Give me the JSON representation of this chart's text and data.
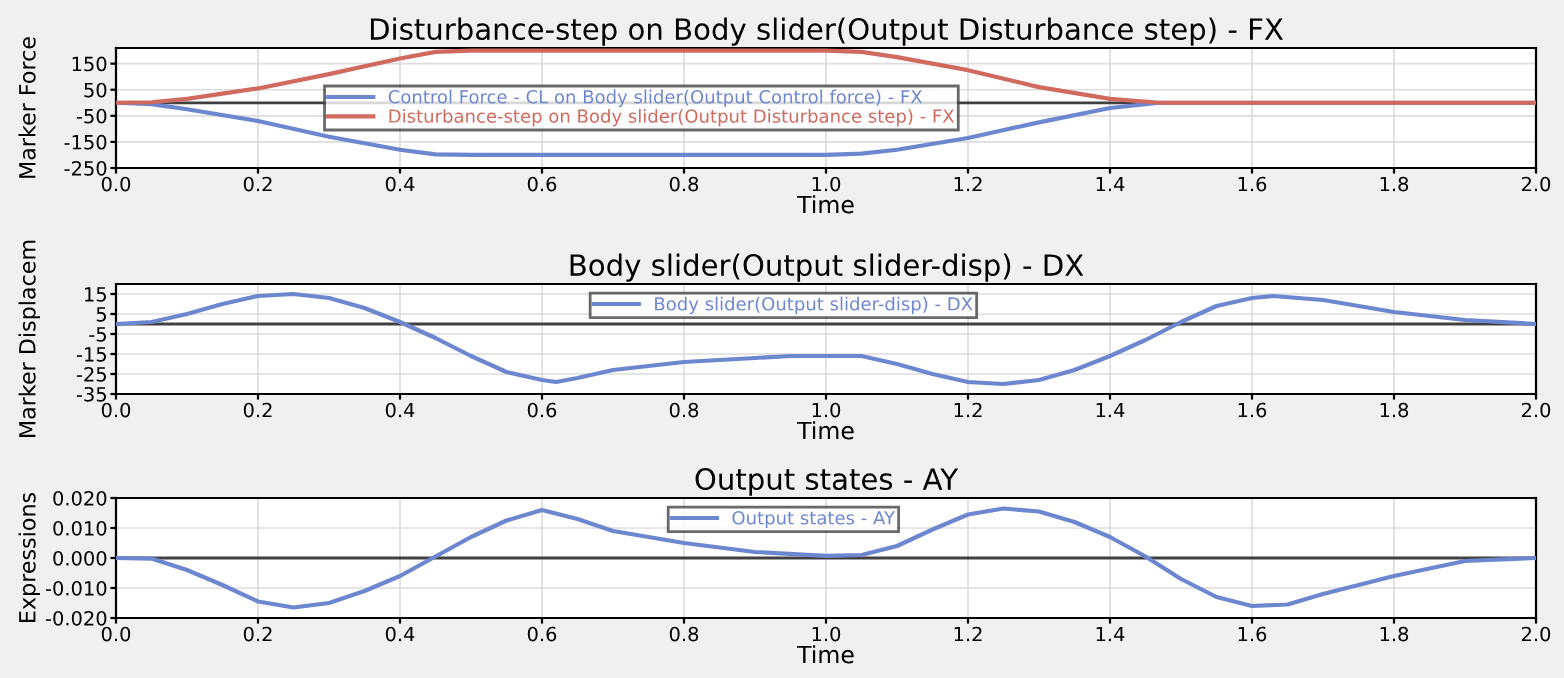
{
  "chart_data": [
    {
      "type": "line",
      "title": "Disturbance-step on Body slider(Output Disturbance step) - FX",
      "xlabel": "Time",
      "ylabel": "Marker Force",
      "xlim": [
        0,
        2
      ],
      "xticks": [
        {
          "value": 0,
          "label": "0.0"
        },
        {
          "value": 0.2,
          "label": "0.2"
        },
        {
          "value": 0.4,
          "label": "0.4"
        },
        {
          "value": 0.6,
          "label": "0.6"
        },
        {
          "value": 0.8,
          "label": "0.8"
        },
        {
          "value": 1,
          "label": "1.0"
        },
        {
          "value": 1.2,
          "label": "1.2"
        },
        {
          "value": 1.4,
          "label": "1.4"
        },
        {
          "value": 1.6,
          "label": "1.6"
        },
        {
          "value": 1.8,
          "label": "1.8"
        },
        {
          "value": 2,
          "label": "2.0"
        }
      ],
      "ylim": [
        -250,
        210
      ],
      "yticks": [
        -250,
        -150,
        -50,
        50,
        150
      ],
      "grid": true,
      "legend": "center",
      "ref_lines": [
        {
          "axis": "y",
          "value": 0,
          "color": "#404040"
        }
      ],
      "series": [
        {
          "name": "Control Force - CL on Body slider(Output Control force) - FX",
          "color": "#6d86d0",
          "x": [
            0,
            0.05,
            0.1,
            0.2,
            0.3,
            0.4,
            0.45,
            0.5,
            1.0,
            1.05,
            1.1,
            1.2,
            1.3,
            1.4,
            1.47,
            2.0
          ],
          "values": [
            0,
            -5,
            -25,
            -70,
            -130,
            -180,
            -198,
            -200,
            -200,
            -195,
            -180,
            -135,
            -75,
            -20,
            0,
            0
          ]
        },
        {
          "name": "Disturbance-step on Body slider(Output Disturbance step) - FX",
          "color": "#d06a5e",
          "x": [
            0,
            0.05,
            0.1,
            0.2,
            0.3,
            0.4,
            0.45,
            0.5,
            1.0,
            1.05,
            1.1,
            1.2,
            1.3,
            1.4,
            1.47,
            2.0
          ],
          "values": [
            0,
            2,
            15,
            55,
            110,
            170,
            195,
            200,
            200,
            195,
            175,
            125,
            60,
            15,
            0,
            0
          ]
        }
      ]
    },
    {
      "type": "line",
      "title": "Body slider(Output slider-disp) - DX",
      "xlabel": "Time",
      "ylabel": "Marker Displacem",
      "xlim": [
        0,
        2
      ],
      "xticks": [
        {
          "value": 0,
          "label": "0.0"
        },
        {
          "value": 0.2,
          "label": "0.2"
        },
        {
          "value": 0.4,
          "label": "0.4"
        },
        {
          "value": 0.6,
          "label": "0.6"
        },
        {
          "value": 0.8,
          "label": "0.8"
        },
        {
          "value": 1,
          "label": "1.0"
        },
        {
          "value": 1.2,
          "label": "1.2"
        },
        {
          "value": 1.4,
          "label": "1.4"
        },
        {
          "value": 1.6,
          "label": "1.6"
        },
        {
          "value": 1.8,
          "label": "1.8"
        },
        {
          "value": 2,
          "label": "2.0"
        }
      ],
      "ylim": [
        -35,
        20
      ],
      "yticks": [
        -35,
        -25,
        -15,
        -5,
        5,
        15
      ],
      "grid": true,
      "legend": "top",
      "ref_lines": [
        {
          "axis": "y",
          "value": 0,
          "color": "#404040"
        }
      ],
      "series": [
        {
          "name": "Body slider(Output slider-disp) - DX",
          "color": "#6d86d0",
          "x": [
            0,
            0.05,
            0.1,
            0.15,
            0.2,
            0.25,
            0.3,
            0.35,
            0.4,
            0.45,
            0.5,
            0.55,
            0.6,
            0.62,
            0.65,
            0.7,
            0.8,
            0.9,
            0.95,
            1.05,
            1.1,
            1.15,
            1.2,
            1.25,
            1.3,
            1.35,
            1.4,
            1.45,
            1.5,
            1.55,
            1.6,
            1.63,
            1.7,
            1.8,
            1.9,
            2.0
          ],
          "values": [
            0,
            1,
            5,
            10,
            14,
            15,
            13,
            8,
            1,
            -7,
            -16,
            -24,
            -28,
            -29,
            -27,
            -23,
            -19,
            -17,
            -16,
            -16,
            -20,
            -25,
            -29,
            -30,
            -28,
            -23,
            -16,
            -8,
            1,
            9,
            13,
            14,
            12,
            6,
            2,
            0
          ]
        }
      ]
    },
    {
      "type": "line",
      "title": "Output states - AY",
      "xlabel": "Time",
      "ylabel": "Expressions",
      "xlim": [
        0,
        2
      ],
      "xticks": [
        {
          "value": 0,
          "label": "0.0"
        },
        {
          "value": 0.2,
          "label": "0.2"
        },
        {
          "value": 0.4,
          "label": "0.4"
        },
        {
          "value": 0.6,
          "label": "0.6"
        },
        {
          "value": 0.8,
          "label": "0.8"
        },
        {
          "value": 1,
          "label": "1.0"
        },
        {
          "value": 1.2,
          "label": "1.2"
        },
        {
          "value": 1.4,
          "label": "1.4"
        },
        {
          "value": 1.6,
          "label": "1.6"
        },
        {
          "value": 1.8,
          "label": "1.8"
        },
        {
          "value": 2,
          "label": "2.0"
        }
      ],
      "ylim": [
        -0.02,
        0.02
      ],
      "yticks": [
        {
          "value": -0.02,
          "label": "-0.020"
        },
        {
          "value": -0.01,
          "label": "-0.010"
        },
        {
          "value": 0,
          "label": "0.000"
        },
        {
          "value": 0.01,
          "label": "0.010"
        },
        {
          "value": 0.02,
          "label": "0.020"
        }
      ],
      "grid": true,
      "legend": "top",
      "ref_lines": [
        {
          "axis": "y",
          "value": 0,
          "color": "#404040"
        }
      ],
      "series": [
        {
          "name": "Output states - AY",
          "color": "#6d86d0",
          "x": [
            0,
            0.05,
            0.1,
            0.15,
            0.2,
            0.25,
            0.3,
            0.35,
            0.4,
            0.45,
            0.5,
            0.55,
            0.6,
            0.65,
            0.7,
            0.8,
            0.9,
            1.0,
            1.05,
            1.1,
            1.15,
            1.2,
            1.25,
            1.3,
            1.35,
            1.4,
            1.45,
            1.5,
            1.55,
            1.6,
            1.65,
            1.7,
            1.8,
            1.9,
            2.0
          ],
          "values": [
            0,
            -0.0002,
            -0.004,
            -0.009,
            -0.0145,
            -0.0165,
            -0.015,
            -0.011,
            -0.006,
            0.0005,
            0.007,
            0.0125,
            0.016,
            0.013,
            0.009,
            0.005,
            0.002,
            0.0007,
            0.001,
            0.004,
            0.0095,
            0.0145,
            0.0165,
            0.0155,
            0.012,
            0.007,
            0.0005,
            -0.007,
            -0.013,
            -0.016,
            -0.0155,
            -0.012,
            -0.006,
            -0.001,
            0
          ]
        }
      ]
    }
  ]
}
